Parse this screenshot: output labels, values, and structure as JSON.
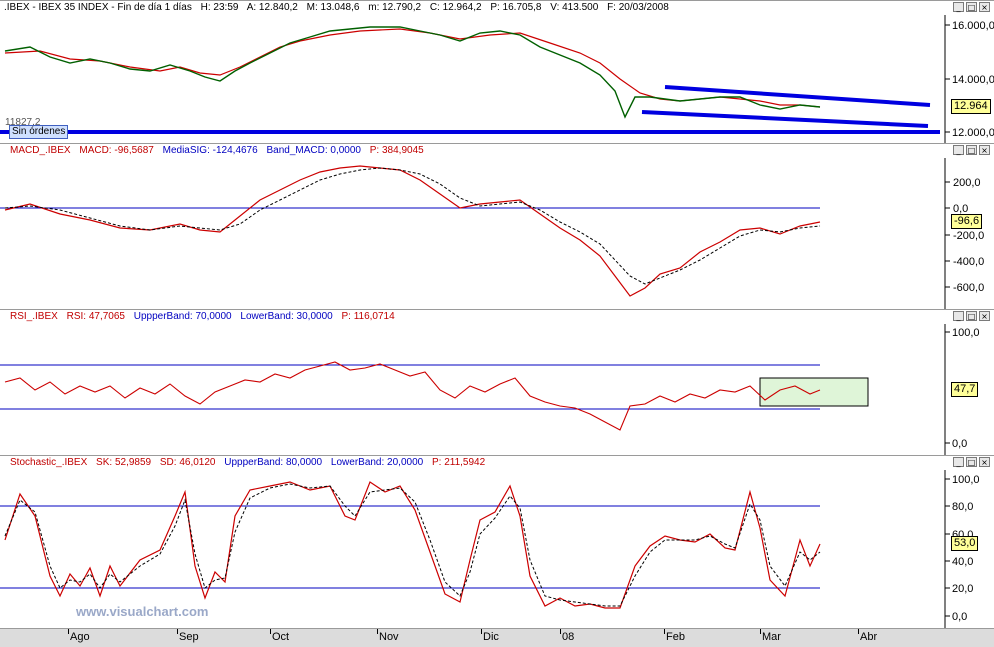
{
  "main_pane": {
    "header": {
      "symbol": ".IBEX - IBEX 35 INDEX - Fin de día 1 días",
      "time": "H: 23:59",
      "fields": [
        "A: 12.840,2",
        "M: 13.048,6",
        "m: 12.790,2",
        "C: 12.964,2",
        "P: 16.705,8",
        "V: 413.500",
        "F: 20/03/2008"
      ]
    },
    "y_ticks": [
      "16.000,0",
      "14.000,0",
      "12.000,0"
    ],
    "last_value": "12.964",
    "order_tag": "Sin órdenes",
    "price_tag": "11827,2"
  },
  "macd_pane": {
    "header": {
      "name": "MACD_.IBEX",
      "fields": [
        "MACD: -96,5687",
        "MediaSIG: -124,4676",
        "Band_MACD: 0,0000"
      ],
      "extra": "P: 384,9045"
    },
    "y_ticks": [
      "200,0",
      "0,0",
      "-200,0",
      "-400,0",
      "-600,0"
    ],
    "last_value": "-96,6"
  },
  "rsi_pane": {
    "header": {
      "name": "RSI_.IBEX",
      "fields": [
        "RSI: 47,7065",
        "UppperBand: 70,0000",
        "LowerBand: 30,0000"
      ],
      "extra": "P: 116,0714"
    },
    "y_ticks": [
      "100,0",
      "0,0"
    ],
    "last_value": "47,7"
  },
  "stoch_pane": {
    "header": {
      "name": "Stochastic_.IBEX",
      "fields": [
        "SK: 52,9859",
        "SD: 46,0120",
        "UppperBand: 80,0000",
        "LowerBand: 20,0000"
      ],
      "extra": "P: 211,5942"
    },
    "y_ticks": [
      "100,0",
      "80,0",
      "60,0",
      "40,0",
      "20,0",
      "0,0"
    ],
    "last_value": "53,0"
  },
  "months": [
    "Ago",
    "Sep",
    "Oct",
    "Nov",
    "Dic",
    "08",
    "Feb",
    "Mar",
    "Abr"
  ],
  "watermark": "www.visualchart.com",
  "window_buttons": [
    "_",
    "□",
    "×"
  ],
  "chart_data": [
    {
      "type": "line",
      "title": "IBEX 35 INDEX",
      "x": [
        "2007-07",
        "2007-08-01",
        "2007-08-15",
        "2007-09-01",
        "2007-09-15",
        "2007-10-01",
        "2007-10-15",
        "2007-11-01",
        "2007-11-15",
        "2007-12-01",
        "2007-12-15",
        "2008-01-01",
        "2008-01-15",
        "2008-01-22",
        "2008-02-01",
        "2008-02-15",
        "2008-03-01",
        "2008-03-20"
      ],
      "series": [
        {
          "name": "C",
          "values": [
            15050,
            14950,
            14400,
            14250,
            14150,
            15100,
            15400,
            15750,
            15550,
            15600,
            15800,
            15300,
            14300,
            12300,
            13300,
            13200,
            13100,
            12964
          ]
        }
      ],
      "ylim": [
        11800,
        16300
      ],
      "colors": {
        "price": "#006000",
        "avg": "#cc0000",
        "trend": "#0000e0"
      }
    },
    {
      "type": "line",
      "title": "MACD_.IBEX",
      "series": [
        {
          "name": "MACD",
          "values": [
            0,
            -40,
            -90,
            -130,
            -150,
            -70,
            120,
            260,
            300,
            200,
            0,
            40,
            -200,
            -660,
            -420,
            -200,
            -150,
            -96.6
          ]
        },
        {
          "name": "MediaSIG",
          "values": [
            0,
            -20,
            -70,
            -120,
            -150,
            -120,
            60,
            200,
            280,
            220,
            60,
            20,
            -150,
            -550,
            -450,
            -250,
            -170,
            -124.5
          ]
        }
      ],
      "ylim": [
        -700,
        300
      ]
    },
    {
      "type": "line",
      "title": "RSI_.IBEX",
      "series": [
        {
          "name": "RSI",
          "values": [
            55,
            48,
            45,
            50,
            42,
            52,
            60,
            68,
            62,
            54,
            46,
            52,
            38,
            20,
            46,
            50,
            48,
            47.7
          ]
        }
      ],
      "bands": [
        70,
        30
      ],
      "ylim": [
        0,
        100
      ]
    },
    {
      "type": "line",
      "title": "Stochastic_.IBEX",
      "series": [
        {
          "name": "SK",
          "values": [
            55,
            88,
            20,
            60,
            22,
            90,
            90,
            95,
            85,
            94,
            20,
            10,
            92,
            5,
            10,
            60,
            85,
            53
          ]
        },
        {
          "name": "SD",
          "values": [
            50,
            80,
            28,
            55,
            28,
            82,
            88,
            92,
            86,
            90,
            25,
            14,
            85,
            8,
            14,
            55,
            78,
            46
          ]
        }
      ],
      "bands": [
        80,
        20
      ],
      "ylim": [
        0,
        100
      ]
    }
  ]
}
